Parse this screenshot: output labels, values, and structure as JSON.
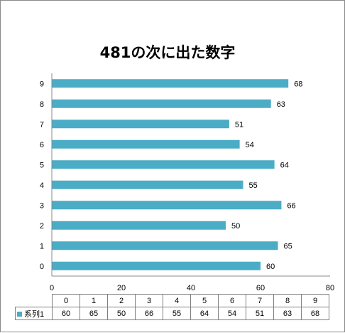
{
  "chart_data": {
    "type": "bar",
    "orientation": "horizontal",
    "title": "481の次に出た数字",
    "categories": [
      "0",
      "1",
      "2",
      "3",
      "4",
      "5",
      "6",
      "7",
      "8",
      "9"
    ],
    "series": [
      {
        "name": "系列1",
        "values": [
          60,
          65,
          50,
          66,
          55,
          64,
          54,
          51,
          63,
          68
        ],
        "color": "#4bacc6"
      }
    ],
    "xlim": [
      0,
      80
    ],
    "x_ticks": [
      0,
      20,
      40,
      60,
      80
    ],
    "grid": false,
    "data_labels": true,
    "data_table": true
  }
}
